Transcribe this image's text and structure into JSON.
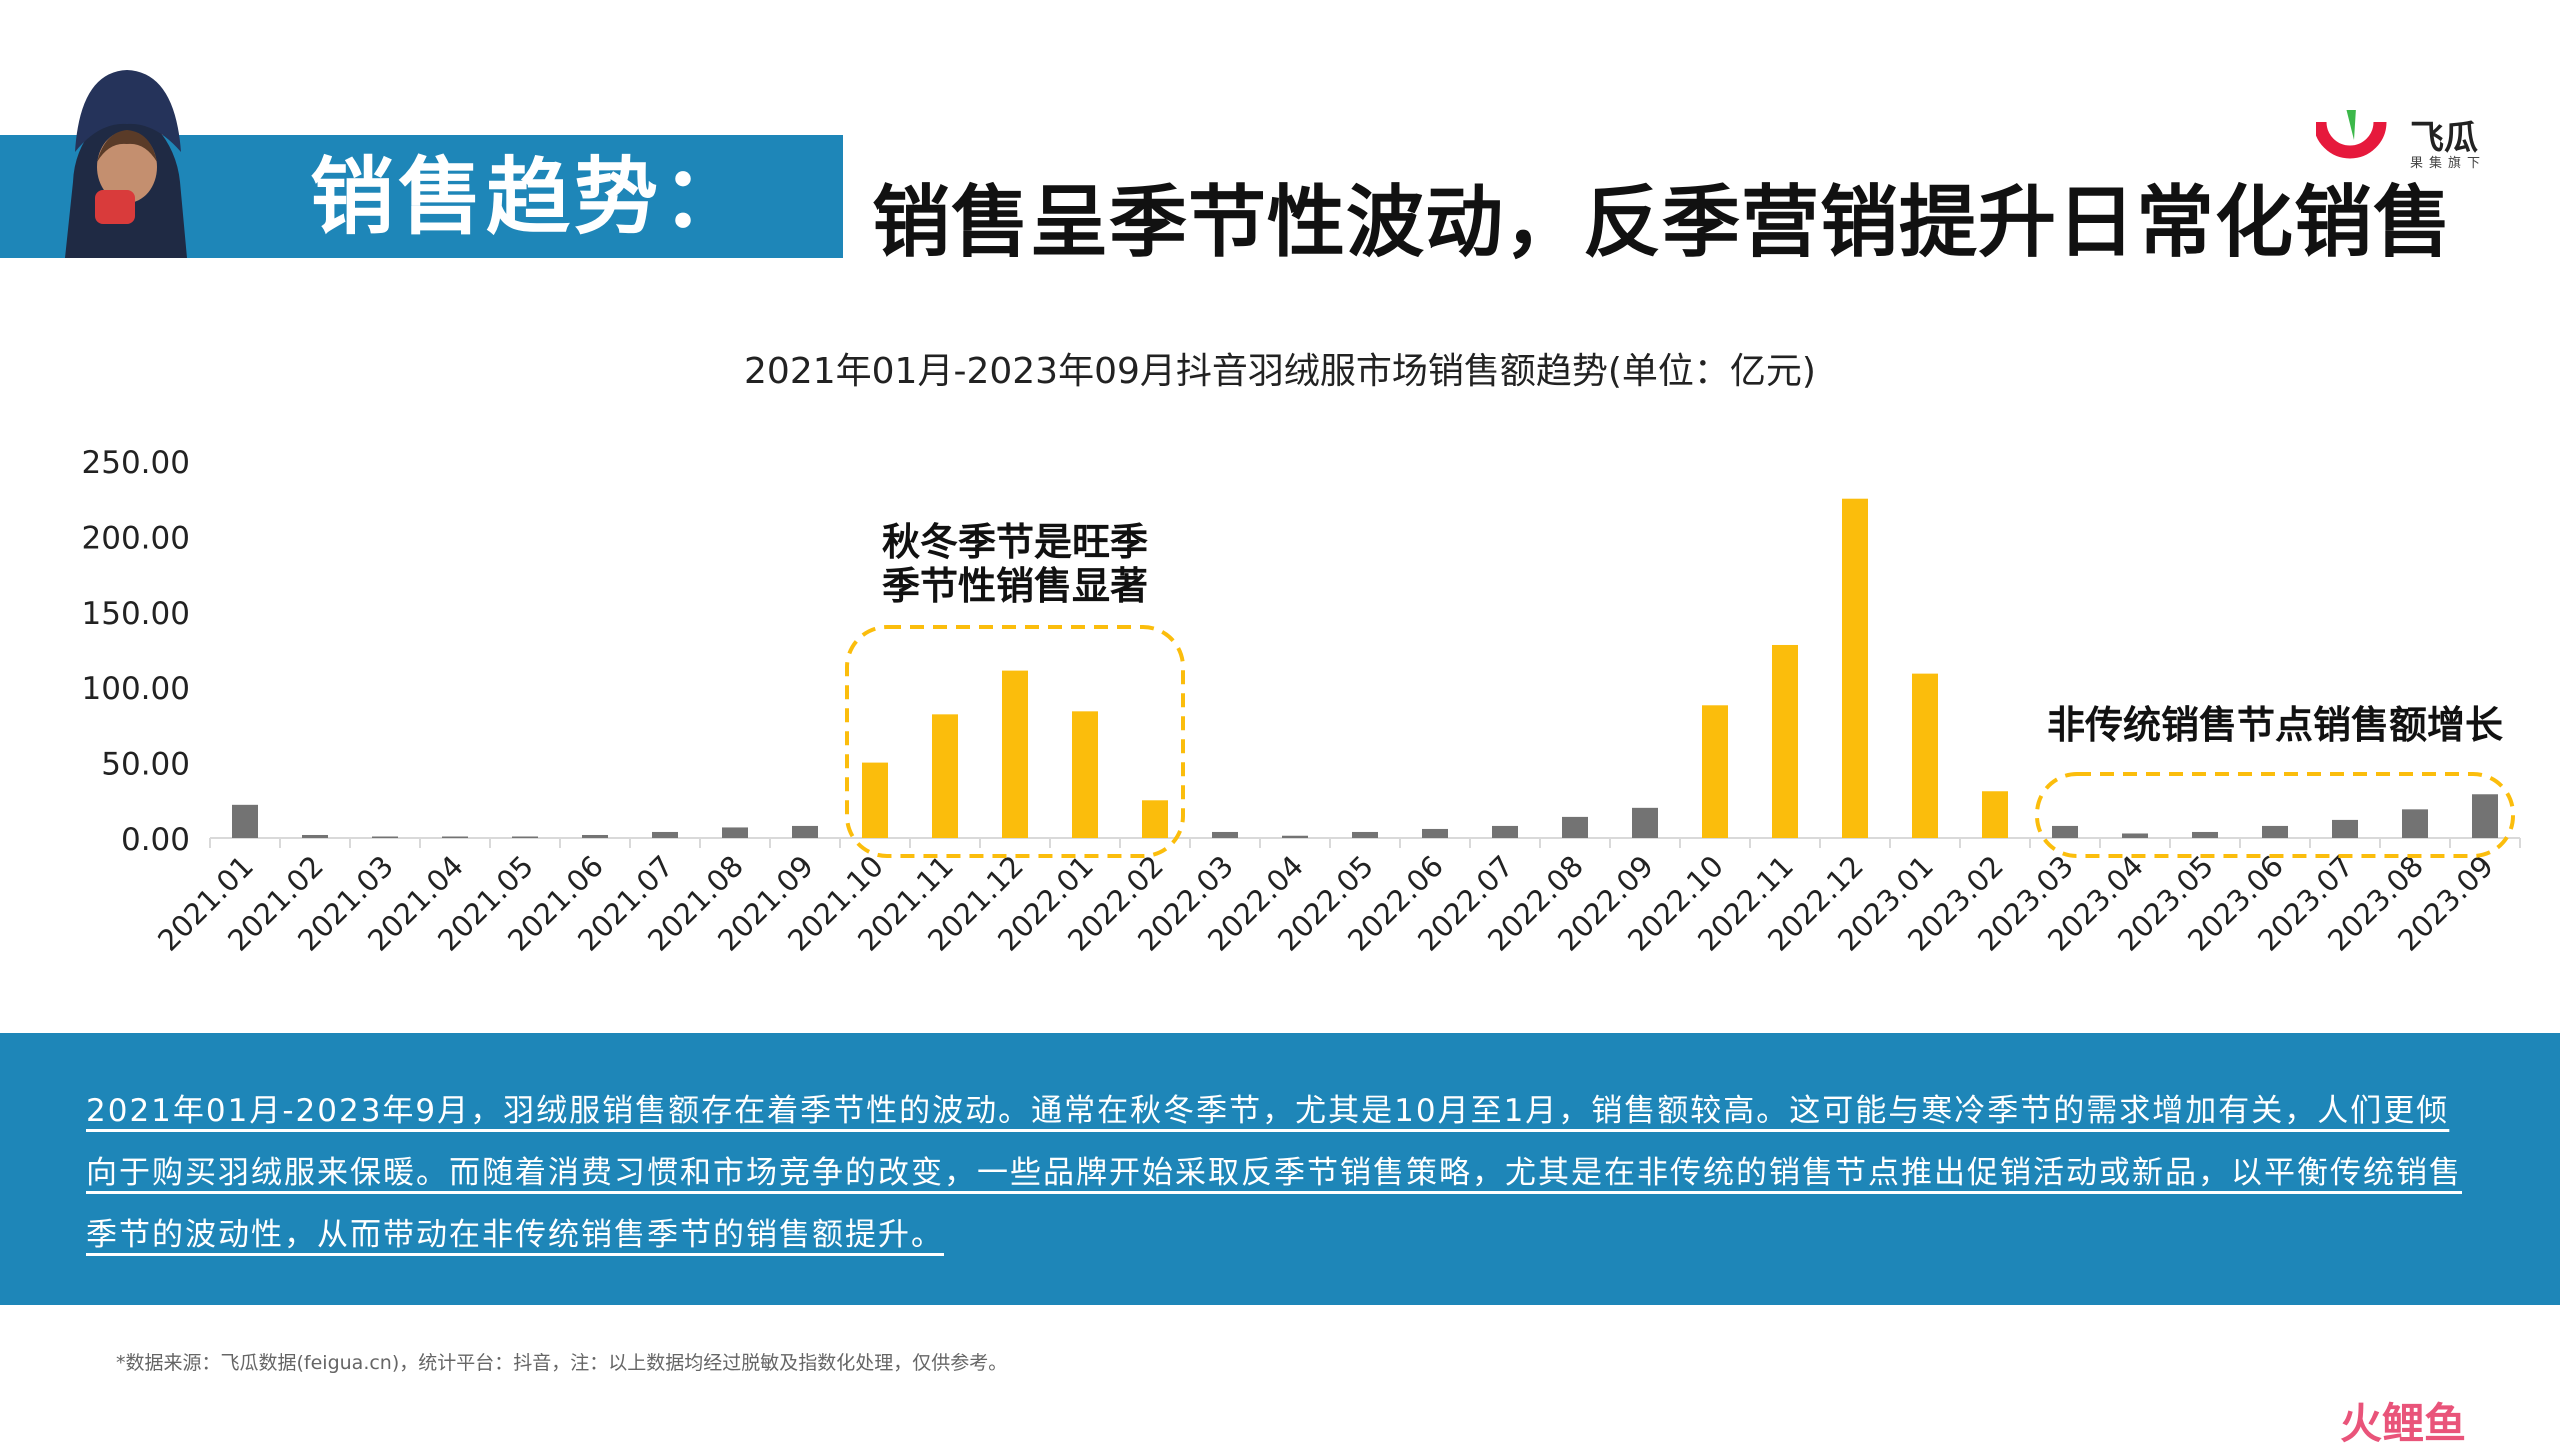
{
  "header": {
    "label": "销售趋势：",
    "title": "销售呈季节性波动，反季营销提升日常化销售"
  },
  "logo": {
    "name": "飞瓜",
    "sub": "果集旗下",
    "colors": {
      "ring": "#e6193c",
      "leaf": "#3cb84a"
    }
  },
  "chart_data": {
    "type": "bar",
    "title": "2021年01月-2023年09月抖音羽绒服市场销售额趋势(单位：亿元)",
    "xlabel": "",
    "ylabel": "",
    "ylim": [
      0,
      250
    ],
    "yticks": [
      "0.00",
      "50.00",
      "100.00",
      "150.00",
      "200.00",
      "250.00"
    ],
    "grid": false,
    "categories": [
      "2021.01",
      "2021.02",
      "2021.03",
      "2021.04",
      "2021.05",
      "2021.06",
      "2021.07",
      "2021.08",
      "2021.09",
      "2021.10",
      "2021.11",
      "2021.12",
      "2022.01",
      "2022.02",
      "2022.03",
      "2022.04",
      "2022.05",
      "2022.06",
      "2022.07",
      "2022.08",
      "2022.09",
      "2022.10",
      "2022.11",
      "2022.12",
      "2023.01",
      "2023.02",
      "2023.03",
      "2023.04",
      "2023.05",
      "2023.06",
      "2023.07",
      "2023.08",
      "2023.09"
    ],
    "values": [
      22,
      2,
      0.5,
      0.5,
      1,
      2,
      4,
      7,
      8,
      50,
      82,
      111,
      84,
      25,
      4,
      1.5,
      4,
      6,
      8,
      14,
      20,
      88,
      128,
      225,
      109,
      31,
      8,
      3,
      4,
      8,
      12,
      19,
      29
    ],
    "highlight": [
      false,
      false,
      false,
      false,
      false,
      false,
      false,
      false,
      false,
      true,
      true,
      true,
      true,
      true,
      false,
      false,
      false,
      false,
      false,
      false,
      false,
      true,
      true,
      true,
      true,
      true,
      false,
      false,
      false,
      false,
      false,
      false,
      false
    ],
    "colors": {
      "normal": "#737373",
      "highlight": "#fbbd0c",
      "box": "#fbbd0c"
    },
    "annotations": [
      {
        "lines": [
          "秋冬季节是旺季",
          "季节性销售显著"
        ],
        "box_from": "2021.10",
        "box_to": "2022.02"
      },
      {
        "lines": [
          "非传统销售节点销售额增长"
        ],
        "box_from": "2023.03",
        "box_to": "2023.09"
      }
    ]
  },
  "summary": {
    "text": "2021年01月-2023年9月，羽绒服销售额存在着季节性的波动。通常在秋冬季节，尤其是10月至1月，销售额较高。这可能与寒冷季节的需求增加有关，人们更倾向于购买羽绒服来保暖。而随着消费习惯和市场竞争的改变，一些品牌开始采取反季节销售策略，尤其是在非传统的销售节点推出促销活动或新品，以平衡传统销售季节的波动性，从而带动在非传统销售季节的销售额提升。"
  },
  "footnote": "*数据来源：飞瓜数据(feigua.cn)，统计平台：抖音，注：以上数据均经过脱敏及指数化处理，仅供参考。",
  "watermark": "火鲤鱼"
}
